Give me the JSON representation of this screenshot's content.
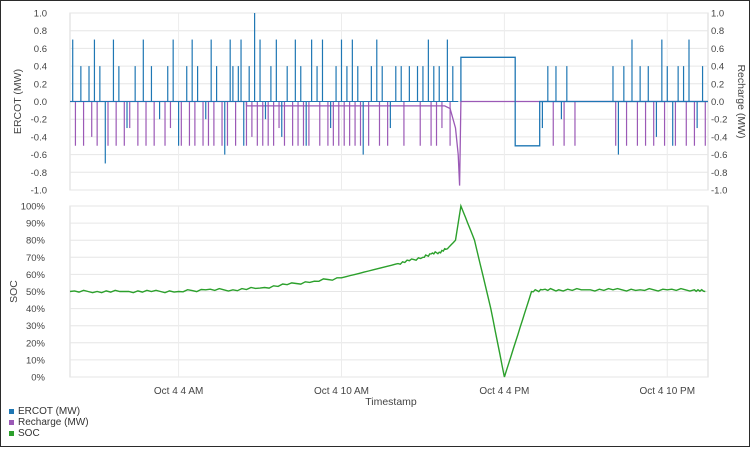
{
  "chart_data": [
    {
      "type": "line",
      "ylabel": "ERCOT (MW)",
      "ylabel_right": "Recharge (MW)",
      "ylim": [
        -1.0,
        1.0
      ],
      "ylim_right": [
        -1.0,
        1.0
      ],
      "y_ticks": [
        "1.0",
        "0.8",
        "0.6",
        "0.4",
        "0.2",
        "0.0",
        "-0.2",
        "-0.4",
        "-0.6",
        "-0.8",
        "-1.0"
      ],
      "y_ticks_right": [
        "1.0",
        "0.8",
        "0.6",
        "0.4",
        "0.2",
        "0.0",
        "-0.2",
        "-0.4",
        "-0.6",
        "-0.8",
        "-1.0"
      ],
      "xlim": [
        0,
        23.5
      ],
      "grid": true,
      "series": [
        {
          "name": "ERCOT (MW)",
          "color": "#1f77b4",
          "spikes": [
            [
              0.1,
              0.7
            ],
            [
              0.4,
              0.4
            ],
            [
              0.7,
              0.4
            ],
            [
              0.9,
              0.7
            ],
            [
              1.1,
              0.4
            ],
            [
              1.3,
              -0.7
            ],
            [
              1.6,
              0.7
            ],
            [
              1.8,
              0.4
            ],
            [
              2.1,
              -0.3
            ],
            [
              2.4,
              0.4
            ],
            [
              2.7,
              0.7
            ],
            [
              3.0,
              0.4
            ],
            [
              3.3,
              -0.2
            ],
            [
              3.6,
              0.4
            ],
            [
              3.8,
              0.7
            ],
            [
              4.0,
              -0.5
            ],
            [
              4.3,
              0.4
            ],
            [
              4.5,
              0.7
            ],
            [
              4.7,
              0.4
            ],
            [
              5.0,
              -0.2
            ],
            [
              5.2,
              0.7
            ],
            [
              5.4,
              0.4
            ],
            [
              5.7,
              -0.6
            ],
            [
              5.9,
              0.7
            ],
            [
              6.0,
              0.4
            ],
            [
              6.2,
              0.4
            ],
            [
              6.3,
              0.7
            ],
            [
              6.4,
              -0.5
            ],
            [
              6.6,
              0.4
            ],
            [
              6.8,
              1.0
            ],
            [
              7.0,
              0.7
            ],
            [
              7.2,
              -0.2
            ],
            [
              7.4,
              0.4
            ],
            [
              7.6,
              0.7
            ],
            [
              7.8,
              -0.4
            ],
            [
              8.0,
              0.4
            ],
            [
              8.3,
              0.7
            ],
            [
              8.5,
              0.4
            ],
            [
              8.7,
              -0.5
            ],
            [
              8.9,
              0.7
            ],
            [
              9.1,
              0.4
            ],
            [
              9.3,
              0.7
            ],
            [
              9.6,
              -0.3
            ],
            [
              9.8,
              0.4
            ],
            [
              10.0,
              0.7
            ],
            [
              10.2,
              0.4
            ],
            [
              10.4,
              0.7
            ],
            [
              10.6,
              0.4
            ],
            [
              10.8,
              -0.6
            ],
            [
              11.1,
              0.4
            ],
            [
              11.3,
              0.7
            ],
            [
              11.5,
              0.4
            ],
            [
              11.8,
              -0.3
            ],
            [
              12.0,
              0.4
            ],
            [
              12.2,
              0.4
            ],
            [
              12.5,
              0.4
            ],
            [
              12.8,
              0.4
            ],
            [
              13.0,
              0.4
            ],
            [
              13.2,
              0.7
            ],
            [
              13.4,
              0.4
            ],
            [
              13.6,
              0.4
            ],
            [
              13.9,
              0.7
            ],
            [
              14.1,
              0.4
            ]
          ],
          "step_segments": [
            [
              14.4,
              0.5
            ],
            [
              16.4,
              -0.5
            ],
            [
              17.3,
              0.0
            ]
          ],
          "spikes_after": [
            [
              17.4,
              -0.3
            ],
            [
              17.6,
              0.4
            ],
            [
              17.9,
              0.4
            ],
            [
              18.1,
              -0.2
            ],
            [
              18.3,
              0.4
            ],
            [
              20.0,
              0.4
            ],
            [
              20.2,
              -0.6
            ],
            [
              20.4,
              0.4
            ],
            [
              20.7,
              0.7
            ],
            [
              21.0,
              0.4
            ],
            [
              21.3,
              0.4
            ],
            [
              21.6,
              -0.4
            ],
            [
              21.8,
              0.7
            ],
            [
              22.0,
              0.4
            ],
            [
              22.2,
              -0.5
            ],
            [
              22.4,
              0.4
            ],
            [
              22.6,
              0.4
            ],
            [
              22.8,
              0.7
            ],
            [
              23.1,
              -0.3
            ],
            [
              23.3,
              0.4
            ]
          ]
        },
        {
          "name": "Recharge (MW)",
          "color": "#9b59b6",
          "spikes": [
            [
              0.2,
              -0.5
            ],
            [
              0.5,
              -0.5
            ],
            [
              0.8,
              -0.4
            ],
            [
              1.0,
              -0.5
            ],
            [
              1.4,
              -0.5
            ],
            [
              1.7,
              -0.5
            ],
            [
              2.0,
              -0.5
            ],
            [
              2.2,
              -0.3
            ],
            [
              2.5,
              -0.5
            ],
            [
              2.8,
              -0.5
            ],
            [
              3.1,
              -0.5
            ],
            [
              3.5,
              -0.5
            ],
            [
              3.7,
              -0.3
            ],
            [
              4.1,
              -0.5
            ],
            [
              4.4,
              -0.5
            ],
            [
              4.6,
              -0.5
            ],
            [
              4.9,
              -0.5
            ],
            [
              5.1,
              -0.5
            ],
            [
              5.3,
              -0.5
            ],
            [
              5.6,
              -0.5
            ],
            [
              5.8,
              -0.5
            ],
            [
              6.1,
              -0.5
            ],
            [
              6.5,
              -0.5
            ],
            [
              6.7,
              -0.4
            ],
            [
              6.9,
              -0.5
            ],
            [
              7.1,
              -0.5
            ],
            [
              7.3,
              -0.5
            ],
            [
              7.5,
              -0.5
            ],
            [
              7.7,
              -0.3
            ],
            [
              7.9,
              -0.5
            ],
            [
              8.2,
              -0.5
            ],
            [
              8.4,
              -0.5
            ],
            [
              8.6,
              -0.5
            ],
            [
              8.8,
              -0.5
            ],
            [
              9.2,
              -0.5
            ],
            [
              9.5,
              -0.5
            ],
            [
              9.7,
              -0.5
            ],
            [
              9.9,
              -0.5
            ],
            [
              10.1,
              -0.5
            ],
            [
              10.3,
              -0.5
            ],
            [
              10.5,
              -0.5
            ],
            [
              10.7,
              -0.5
            ],
            [
              11.0,
              -0.5
            ],
            [
              11.4,
              -0.5
            ],
            [
              11.7,
              -0.5
            ],
            [
              12.3,
              -0.5
            ],
            [
              12.9,
              -0.5
            ],
            [
              13.3,
              -0.5
            ],
            [
              13.5,
              -0.5
            ],
            [
              13.7,
              -0.3
            ],
            [
              14.0,
              -0.5
            ],
            [
              17.8,
              -0.5
            ],
            [
              18.2,
              -0.5
            ],
            [
              18.6,
              -0.5
            ],
            [
              20.1,
              -0.5
            ],
            [
              20.5,
              -0.5
            ],
            [
              20.9,
              -0.5
            ],
            [
              21.2,
              -0.5
            ],
            [
              21.5,
              -0.5
            ],
            [
              21.9,
              -0.5
            ],
            [
              22.3,
              -0.5
            ],
            [
              22.7,
              -0.5
            ],
            [
              23.0,
              -0.5
            ],
            [
              23.4,
              -0.5
            ]
          ],
          "baseline_segments": [
            [
              0.0,
              0.0
            ],
            [
              6.5,
              0.0
            ],
            [
              6.5,
              -0.05
            ],
            [
              13.8,
              -0.05
            ],
            [
              14.0,
              -0.08
            ],
            [
              14.2,
              -0.3
            ],
            [
              14.3,
              -0.6
            ],
            [
              14.35,
              -0.95
            ],
            [
              14.4,
              0.0
            ],
            [
              23.5,
              0.0
            ]
          ]
        }
      ]
    },
    {
      "type": "line",
      "xlabel": "Timestamp",
      "ylabel": "SOC",
      "ylim": [
        0,
        100
      ],
      "y_ticks": [
        "100%",
        "90%",
        "80%",
        "70%",
        "60%",
        "50%",
        "40%",
        "30%",
        "20%",
        "10%",
        "0%"
      ],
      "x_ticks": [
        "Oct 4 4 AM",
        "Oct 4 10 AM",
        "Oct 4 4 PM",
        "Oct 4 10 PM"
      ],
      "x_tick_positions": [
        4,
        10,
        16,
        22
      ],
      "xlim": [
        0,
        23.5
      ],
      "grid": true,
      "series": [
        {
          "name": "SOC",
          "color": "#2ca02c",
          "x": [
            0.0,
            1.0,
            2.0,
            3.0,
            4.0,
            5.0,
            6.0,
            7.0,
            8.0,
            9.0,
            10.0,
            11.0,
            12.0,
            12.5,
            13.0,
            13.3,
            13.6,
            13.9,
            14.2,
            14.4,
            14.9,
            15.5,
            16.0,
            16.5,
            17.0,
            17.4,
            18.0,
            19.0,
            20.0,
            21.0,
            22.0,
            23.0,
            23.4
          ],
          "values": [
            50,
            50,
            50,
            50,
            50,
            51,
            51,
            52,
            54,
            56,
            58,
            62,
            66,
            68,
            70,
            72,
            73,
            75,
            80,
            100,
            80,
            40,
            0,
            25,
            50,
            51,
            51,
            51,
            51,
            51,
            51,
            51,
            50
          ]
        }
      ]
    }
  ],
  "legend": [
    {
      "label": "ERCOT (MW)",
      "color": "#1f77b4"
    },
    {
      "label": "Recharge (MW)",
      "color": "#9b59b6"
    },
    {
      "label": "SOC",
      "color": "#2ca02c"
    }
  ]
}
